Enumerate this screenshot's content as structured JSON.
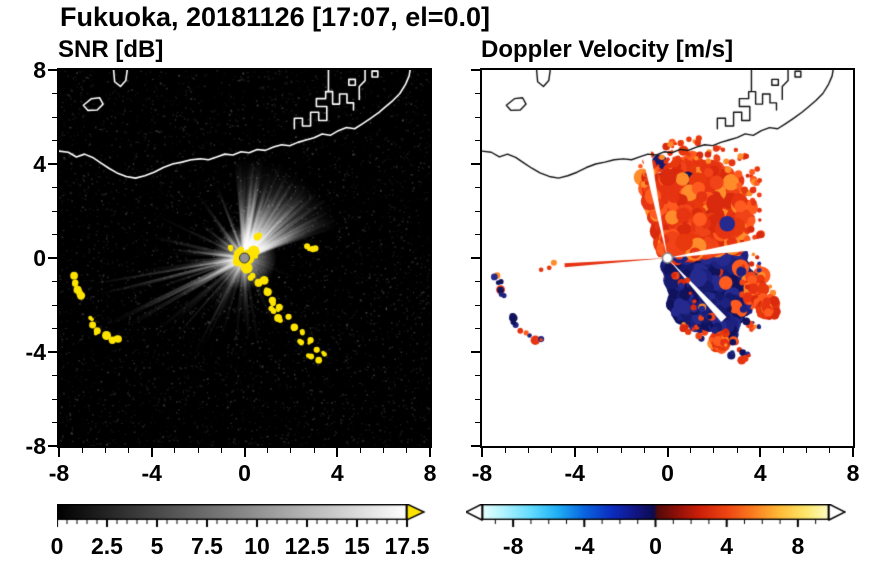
{
  "header": {
    "title": "Fukuoka, 20181126 [17:07, el=0.0]"
  },
  "panels": {
    "snr": {
      "title": "SNR [dB]"
    },
    "vel": {
      "title": "Doppler Velocity [m/s]"
    }
  },
  "axes": {
    "x": {
      "range": [
        -8,
        8
      ],
      "major_ticks": [
        -8,
        -4,
        0,
        4,
        8
      ],
      "labels": [
        "-8",
        "-4",
        "0",
        "4",
        "8"
      ],
      "minor_step": 1
    },
    "y": {
      "range": [
        -8,
        8
      ],
      "major_ticks": [
        8,
        4,
        0,
        -4,
        -8
      ],
      "labels": [
        "8",
        "4",
        "0",
        "-4",
        "-8"
      ],
      "minor_step": 1
    }
  },
  "colorbars": {
    "snr": {
      "min": 0,
      "max": 17.5,
      "minor_step": 0.5,
      "major_ticks": [
        0,
        2.5,
        5,
        7.5,
        10,
        12.5,
        15,
        17.5
      ],
      "labels": [
        "0",
        "2.5",
        "5",
        "7.5",
        "10",
        "12.5",
        "15",
        "17.5"
      ],
      "gradient": [
        [
          0,
          "#000000"
        ],
        [
          1,
          "#ffffff"
        ]
      ],
      "over_arrow_color": "#ffe400",
      "border_color": "#000000"
    },
    "vel": {
      "min": -9.75,
      "max": 9.75,
      "minor_step": 1,
      "major_ticks": [
        -8,
        -4,
        0,
        4,
        8
      ],
      "labels": [
        "-8",
        "-4",
        "0",
        "4",
        "8"
      ],
      "stops": [
        [
          0,
          "#e8ffff"
        ],
        [
          0.064,
          "#aef2ff"
        ],
        [
          0.141,
          "#62dcff"
        ],
        [
          0.218,
          "#1fb0f5"
        ],
        [
          0.295,
          "#0a64e0"
        ],
        [
          0.372,
          "#0b2ec0"
        ],
        [
          0.438,
          "#121688"
        ],
        [
          0.495,
          "#0c0c50"
        ],
        [
          0.505,
          "#520a0a"
        ],
        [
          0.562,
          "#8f1007"
        ],
        [
          0.628,
          "#cc200a"
        ],
        [
          0.705,
          "#ee4412"
        ],
        [
          0.782,
          "#fb7d20"
        ],
        [
          0.859,
          "#ffbc38"
        ],
        [
          0.936,
          "#fce86e"
        ],
        [
          1,
          "#fffbc4"
        ]
      ],
      "under_arrow_color": "#ffffff",
      "over_arrow_color": "#ffffff",
      "border_color": "#000000"
    }
  },
  "chart_data": {
    "type": "heatmap",
    "title": "Fukuoka, 20181126 [17:07, el=0.0]",
    "x_range": [
      -8,
      8
    ],
    "y_range": [
      -8,
      8
    ],
    "radar_center": [
      0,
      0
    ],
    "panels": [
      {
        "name": "SNR",
        "units": "dB",
        "value_range": [
          0,
          17.5
        ],
        "background": "#000000",
        "over_range_color": "#ffe400",
        "content": "PPI of signal-to-noise ratio: bright radial beams fan out mainly toward the north-east; saturated yellow ground clutter at the radar site, along a chain toward (3.5,-4.2), and in arcs near (-7.3,-1), (-6.5,-2.9) and (-5.7,-3.5)."
      },
      {
        "name": "Doppler Velocity",
        "units": "m/s",
        "value_range": [
          -9.75,
          9.75
        ],
        "background": "#ffffff",
        "content": "Doppler velocity in the same sector: red/orange echoes (+2 to +7 m/s) north-east of the radar, dark-blue echoes (-3 to -7 m/s) east-south-east and south, a thin red ray toward the west, mixed red/blue clutter arcs to the south-west."
      }
    ],
    "coastline": [
      [
        [
          -8,
          4.55
        ],
        [
          -7.6,
          4.5
        ],
        [
          -7.25,
          4.3
        ],
        [
          -6.9,
          4.42
        ],
        [
          -6.55,
          4.28
        ],
        [
          -6.2,
          4.05
        ],
        [
          -5.85,
          3.82
        ],
        [
          -5.5,
          3.62
        ],
        [
          -5.1,
          3.47
        ],
        [
          -4.7,
          3.4
        ],
        [
          -4.3,
          3.5
        ],
        [
          -3.9,
          3.65
        ],
        [
          -3.5,
          3.85
        ],
        [
          -3.1,
          4.0
        ],
        [
          -2.7,
          4.08
        ],
        [
          -2.3,
          4.18
        ],
        [
          -1.9,
          4.22
        ],
        [
          -1.55,
          4.18
        ],
        [
          -1.2,
          4.3
        ],
        [
          -0.85,
          4.42
        ],
        [
          -0.5,
          4.38
        ],
        [
          -0.15,
          4.52
        ],
        [
          0.2,
          4.48
        ],
        [
          0.55,
          4.62
        ],
        [
          0.9,
          4.58
        ],
        [
          1.25,
          4.72
        ],
        [
          1.6,
          4.82
        ],
        [
          1.95,
          4.78
        ],
        [
          2.3,
          4.92
        ],
        [
          2.65,
          5.02
        ],
        [
          3.0,
          5.12
        ],
        [
          3.35,
          5.28
        ],
        [
          3.7,
          5.22
        ],
        [
          4.05,
          5.42
        ],
        [
          4.4,
          5.55
        ],
        [
          4.75,
          5.5
        ],
        [
          5.1,
          5.72
        ],
        [
          5.45,
          5.95
        ],
        [
          5.8,
          6.2
        ],
        [
          6.1,
          6.45
        ],
        [
          6.4,
          6.7
        ],
        [
          6.7,
          7.0
        ],
        [
          6.95,
          7.4
        ],
        [
          7.1,
          7.75
        ],
        [
          7.15,
          8.05
        ]
      ],
      [
        [
          -6.95,
          6.5
        ],
        [
          -6.6,
          6.78
        ],
        [
          -6.25,
          6.82
        ],
        [
          -6.1,
          6.55
        ],
        [
          -6.35,
          6.3
        ],
        [
          -6.75,
          6.28
        ],
        [
          -6.95,
          6.5
        ]
      ],
      [
        [
          -5.65,
          8.05
        ],
        [
          -5.6,
          7.5
        ],
        [
          -5.35,
          7.3
        ],
        [
          -5.12,
          7.55
        ],
        [
          -5.05,
          8.05
        ]
      ],
      [
        [
          2.15,
          5.5
        ],
        [
          2.15,
          5.95
        ],
        [
          2.5,
          5.95
        ],
        [
          2.5,
          5.62
        ],
        [
          2.85,
          5.62
        ],
        [
          2.85,
          6.2
        ],
        [
          3.2,
          6.2
        ],
        [
          3.2,
          5.85
        ],
        [
          3.55,
          5.85
        ],
        [
          3.55,
          6.45
        ],
        [
          3.1,
          6.45
        ],
        [
          3.1,
          6.78
        ],
        [
          3.5,
          6.78
        ],
        [
          3.5,
          7.08
        ],
        [
          3.8,
          7.08
        ],
        [
          3.8,
          6.55
        ],
        [
          4.1,
          6.55
        ],
        [
          4.1,
          6.98
        ],
        [
          4.42,
          6.98
        ],
        [
          4.42,
          6.6
        ],
        [
          4.7,
          6.6
        ],
        [
          4.7,
          6.3
        ]
      ],
      [
        [
          3.62,
          7.1
        ],
        [
          3.62,
          8.05
        ]
      ],
      [
        [
          4.95,
          6.75
        ],
        [
          4.95,
          7.3
        ],
        [
          5.2,
          7.55
        ],
        [
          5.2,
          8.05
        ]
      ],
      [
        [
          4.5,
          7.35
        ],
        [
          4.78,
          7.35
        ],
        [
          4.78,
          7.6
        ],
        [
          4.5,
          7.6
        ],
        [
          4.5,
          7.35
        ]
      ],
      [
        [
          5.5,
          7.7
        ],
        [
          5.75,
          7.7
        ],
        [
          5.75,
          7.95
        ],
        [
          5.5,
          7.95
        ],
        [
          5.5,
          7.7
        ]
      ]
    ],
    "snr": {
      "background": "#000000",
      "noise_specks": 7000,
      "clutter_color": "#ffe400",
      "center_glow_radius": 1.4,
      "center_marker_color": "#909090",
      "ray_sectors": [
        {
          "a0": 18,
          "a1": 96,
          "count": 120,
          "len": [
            2.2,
            4.6
          ],
          "alpha": [
            0.05,
            0.2
          ],
          "width": [
            2,
            5
          ]
        },
        {
          "a0": 26,
          "a1": 92,
          "count": 35,
          "len": [
            2.6,
            4.5
          ],
          "alpha": [
            0.22,
            0.5
          ],
          "width": [
            1.5,
            3.5
          ]
        },
        {
          "a0": 97,
          "a1": 150,
          "count": 16,
          "len": [
            1.5,
            3.9
          ],
          "alpha": [
            0.08,
            0.26
          ],
          "width": [
            1.5,
            3
          ]
        },
        {
          "a0": 152,
          "a1": 178,
          "count": 9,
          "len": [
            2,
            4.6
          ],
          "alpha": [
            0.1,
            0.3
          ],
          "width": [
            1.5,
            3
          ]
        },
        {
          "a0": 180,
          "a1": 212,
          "count": 15,
          "len": [
            2.5,
            6.9
          ],
          "alpha": [
            0.14,
            0.42
          ],
          "width": [
            2,
            5
          ]
        },
        {
          "a0": 213,
          "a1": 248,
          "count": 11,
          "len": [
            2,
            5.3
          ],
          "alpha": [
            0.1,
            0.32
          ],
          "width": [
            1.5,
            4
          ]
        },
        {
          "a0": 250,
          "a1": 300,
          "count": 13,
          "len": [
            1.5,
            4.6
          ],
          "alpha": [
            0.08,
            0.26
          ],
          "width": [
            1,
            3
          ]
        },
        {
          "a0": 302,
          "a1": 350,
          "count": 7,
          "len": [
            1,
            3
          ],
          "alpha": [
            0.05,
            0.16
          ],
          "width": [
            1,
            2.5
          ]
        }
      ],
      "clutter_chain": [
        [
          0.35,
          -0.75
        ],
        [
          0.6,
          -1.05
        ],
        [
          0.85,
          -0.95
        ],
        [
          1.0,
          -1.45
        ],
        [
          1.2,
          -1.8
        ],
        [
          1.15,
          -2.15
        ],
        [
          1.5,
          -2.1
        ],
        [
          1.45,
          -2.55
        ],
        [
          1.9,
          -2.5
        ],
        [
          2.15,
          -2.95
        ],
        [
          2.5,
          -3.2
        ],
        [
          2.45,
          -3.6
        ],
        [
          2.85,
          -3.5
        ],
        [
          3.1,
          -3.9
        ],
        [
          3.45,
          -4.1
        ],
        [
          3.2,
          -4.35
        ],
        [
          2.75,
          -4.15
        ]
      ],
      "clutter_west": [
        [
          -7.35,
          -0.75
        ],
        [
          -7.3,
          -1.05
        ],
        [
          -7.2,
          -1.35
        ],
        [
          -7.05,
          -1.6
        ],
        [
          -6.65,
          -2.55
        ],
        [
          -6.55,
          -2.85
        ],
        [
          -6.35,
          -3.1
        ],
        [
          -5.95,
          -3.3
        ],
        [
          -5.7,
          -3.5
        ],
        [
          -5.45,
          -3.45
        ]
      ],
      "clutter_spots": [
        [
          2.7,
          0.5
        ],
        [
          2.95,
          0.38
        ],
        [
          -0.6,
          0.45
        ],
        [
          0.55,
          0.9
        ]
      ]
    },
    "vel": {
      "background": "#ffffff",
      "red_colors": [
        "#e63312",
        "#f04318",
        "#d92a0e",
        "#ff5a1f",
        "#e8380d"
      ],
      "orange_color": "#ff8c2a",
      "navy_colors": [
        "#151a6e",
        "#1d2280",
        "#10125c",
        "#252a8e"
      ],
      "red_fan": {
        "a0": 10,
        "a1": 108,
        "count": 1150,
        "rmax_base": 3.2,
        "rmax_peak": 4.4
      },
      "navy_region": {
        "a0": -78,
        "a1": 12,
        "count": 900,
        "rmax_base": 2.4,
        "rmax_peak": 3.9
      },
      "extra_navy_blobs": [
        {
          "c": [
            1.9,
            -2.3
          ],
          "r": 0.75
        },
        {
          "c": [
            2.5,
            -2.9
          ],
          "r": 0.5
        },
        {
          "c": [
            0.6,
            -2.0
          ],
          "r": 0.55
        }
      ],
      "extra_red_blobs": [
        {
          "c": [
            3.7,
            -1.3
          ],
          "r": 0.55
        },
        {
          "c": [
            4.3,
            -2.1
          ],
          "r": 0.45
        },
        {
          "c": [
            2.2,
            -3.6
          ],
          "r": 0.35
        }
      ],
      "white_gaps": [
        {
          "a0": 99,
          "a1": 104,
          "len": 4.8
        },
        {
          "a0": 5,
          "a1": 12,
          "len": 4.9
        },
        {
          "a0": -50,
          "a1": -45,
          "len": 3.6
        },
        {
          "a0": 174,
          "a1": 192,
          "len": 5.2
        }
      ],
      "thin_ray": {
        "angle": 184,
        "len": 4.45,
        "half_deg": 1.1,
        "color": "#e63312"
      },
      "ray_specks": [
        [
          -5.1,
          -0.42
        ],
        [
          -5.45,
          -0.5
        ],
        [
          -4.9,
          -0.2
        ]
      ],
      "center_marker_color": "#ffffff"
    }
  }
}
